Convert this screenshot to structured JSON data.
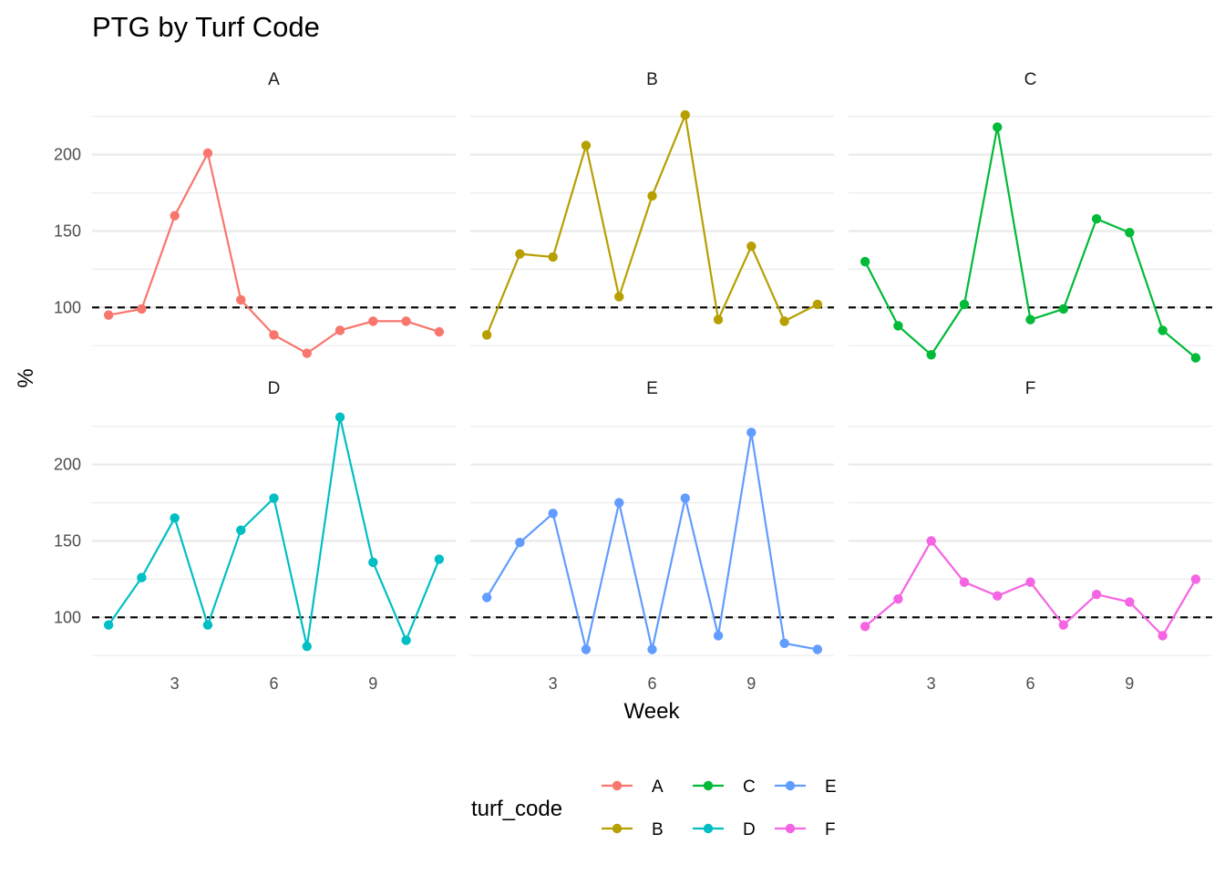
{
  "chart_data": {
    "type": "line",
    "title": "PTG by Turf Code",
    "xlabel": "Week",
    "ylabel": "%",
    "facet_by": "turf_code",
    "x": [
      1,
      2,
      3,
      4,
      5,
      6,
      7,
      8,
      9,
      10,
      11
    ],
    "xticks": [
      3,
      6,
      9
    ],
    "yticks": [
      100,
      150,
      200
    ],
    "reference_line": {
      "y": 100,
      "style": "dashed",
      "color": "#000000"
    },
    "grid": true,
    "legend": {
      "title": "turf_code",
      "position": "bottom"
    },
    "series": [
      {
        "name": "A",
        "color": "#F8766D",
        "values": [
          95,
          99,
          160,
          201,
          105,
          82,
          70,
          85,
          91,
          91,
          84
        ]
      },
      {
        "name": "B",
        "color": "#B79F00",
        "values": [
          82,
          135,
          133,
          206,
          107,
          173,
          226,
          92,
          140,
          91,
          102
        ]
      },
      {
        "name": "C",
        "color": "#00BA38",
        "values": [
          130,
          88,
          69,
          102,
          218,
          92,
          99,
          158,
          149,
          85,
          67
        ]
      },
      {
        "name": "D",
        "color": "#00BFC4",
        "values": [
          95,
          126,
          165,
          95,
          157,
          178,
          81,
          231,
          136,
          85,
          138
        ]
      },
      {
        "name": "E",
        "color": "#619CFF",
        "values": [
          113,
          149,
          168,
          79,
          175,
          79,
          178,
          88,
          221,
          83,
          79
        ]
      },
      {
        "name": "F",
        "color": "#F564E3",
        "values": [
          94,
          112,
          150,
          123,
          114,
          123,
          95,
          115,
          110,
          88,
          125
        ]
      }
    ]
  }
}
